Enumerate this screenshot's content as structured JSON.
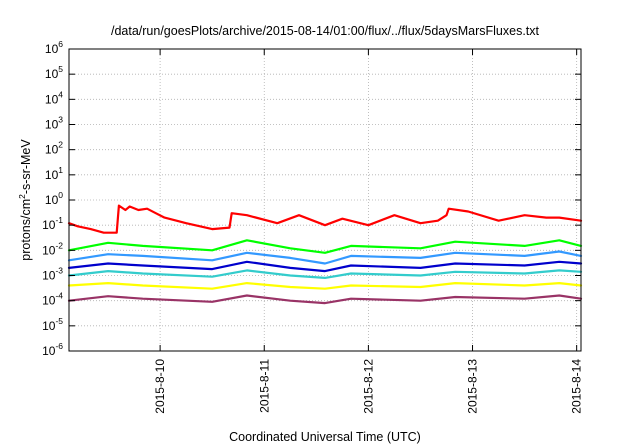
{
  "chart_data": {
    "type": "line",
    "title": "/data/run/goesPlots/archive/2015-08-14/01:00/flux/../flux/5daysMarsFluxes.txt",
    "xlabel": "Coordinated Universal Time (UTC)",
    "ylabel": {
      "base": "protons/cm",
      "exponent": "2",
      "rest": "-s-sr-MeV"
    },
    "yscale": "log",
    "ylim": [
      1e-06,
      1000000.0
    ],
    "xlim": [
      "2015-08-09T03:00",
      "2015-08-14T01:00"
    ],
    "grid": true,
    "legend": "none",
    "y_tick_labels": [
      {
        "base": "10",
        "exp": "-6"
      },
      {
        "base": "10",
        "exp": "-5"
      },
      {
        "base": "10",
        "exp": "-4"
      },
      {
        "base": "10",
        "exp": "-3"
      },
      {
        "base": "10",
        "exp": "-2"
      },
      {
        "base": "10",
        "exp": "-1"
      },
      {
        "base": "10",
        "exp": "0"
      },
      {
        "base": "10",
        "exp": "1"
      },
      {
        "base": "10",
        "exp": "2"
      },
      {
        "base": "10",
        "exp": "3"
      },
      {
        "base": "10",
        "exp": "4"
      },
      {
        "base": "10",
        "exp": "5"
      },
      {
        "base": "10",
        "exp": "6"
      }
    ],
    "x_ticks": [
      {
        "date": "2015-08-10T00:00",
        "label": "2015-8-10"
      },
      {
        "date": "2015-08-11T00:00",
        "label": "2015-8-11"
      },
      {
        "date": "2015-08-12T00:00",
        "label": "2015-8-12"
      },
      {
        "date": "2015-08-13T00:00",
        "label": "2015-8-13"
      },
      {
        "date": "2015-08-14T00:00",
        "label": "2015-8-14"
      }
    ],
    "series": [
      {
        "color": "#ff0000",
        "x": [
          "2015-08-09T03:00",
          "2015-08-09T05:00",
          "2015-08-09T08:00",
          "2015-08-09T11:00",
          "2015-08-09T14:00",
          "2015-08-09T14:30",
          "2015-08-09T16:00",
          "2015-08-09T17:00",
          "2015-08-09T19:00",
          "2015-08-09T21:00",
          "2015-08-09T23:00",
          "2015-08-10T01:00",
          "2015-08-10T06:00",
          "2015-08-10T12:00",
          "2015-08-10T16:00",
          "2015-08-10T16:30",
          "2015-08-10T20:00",
          "2015-08-11T03:00",
          "2015-08-11T08:00",
          "2015-08-11T14:00",
          "2015-08-11T18:00",
          "2015-08-12T00:00",
          "2015-08-12T06:00",
          "2015-08-12T12:00",
          "2015-08-12T16:00",
          "2015-08-12T18:00",
          "2015-08-12T18:30",
          "2015-08-12T23:00",
          "2015-08-13T06:00",
          "2015-08-13T12:00",
          "2015-08-13T17:00",
          "2015-08-13T20:00",
          "2015-08-14T01:00"
        ],
        "y": [
          0.12,
          0.09,
          0.07,
          0.05,
          0.05,
          0.6,
          0.4,
          0.55,
          0.4,
          0.45,
          0.3,
          0.2,
          0.12,
          0.07,
          0.08,
          0.3,
          0.25,
          0.12,
          0.25,
          0.1,
          0.18,
          0.1,
          0.25,
          0.12,
          0.15,
          0.25,
          0.45,
          0.35,
          0.15,
          0.25,
          0.2,
          0.2,
          0.15
        ]
      },
      {
        "color": "#00ff00",
        "x": [
          "2015-08-09T03:00",
          "2015-08-09T12:00",
          "2015-08-09T20:00",
          "2015-08-10T12:00",
          "2015-08-10T20:00",
          "2015-08-11T06:00",
          "2015-08-11T14:00",
          "2015-08-11T20:00",
          "2015-08-12T12:00",
          "2015-08-12T20:00",
          "2015-08-13T12:00",
          "2015-08-13T20:00",
          "2015-08-14T01:00"
        ],
        "y": [
          0.01,
          0.02,
          0.015,
          0.01,
          0.025,
          0.012,
          0.008,
          0.015,
          0.012,
          0.022,
          0.015,
          0.025,
          0.015
        ]
      },
      {
        "color": "#3399ff",
        "x": [
          "2015-08-09T03:00",
          "2015-08-09T12:00",
          "2015-08-09T20:00",
          "2015-08-10T12:00",
          "2015-08-10T20:00",
          "2015-08-11T06:00",
          "2015-08-11T14:00",
          "2015-08-11T20:00",
          "2015-08-12T12:00",
          "2015-08-12T20:00",
          "2015-08-13T12:00",
          "2015-08-13T20:00",
          "2015-08-14T01:00"
        ],
        "y": [
          0.004,
          0.007,
          0.006,
          0.004,
          0.008,
          0.005,
          0.003,
          0.006,
          0.005,
          0.008,
          0.006,
          0.009,
          0.006
        ]
      },
      {
        "color": "#0000cc",
        "x": [
          "2015-08-09T03:00",
          "2015-08-09T12:00",
          "2015-08-09T20:00",
          "2015-08-10T12:00",
          "2015-08-10T20:00",
          "2015-08-11T06:00",
          "2015-08-11T14:00",
          "2015-08-11T20:00",
          "2015-08-12T12:00",
          "2015-08-12T20:00",
          "2015-08-13T12:00",
          "2015-08-13T20:00",
          "2015-08-14T01:00"
        ],
        "y": [
          0.002,
          0.003,
          0.0025,
          0.0018,
          0.0035,
          0.002,
          0.0015,
          0.0025,
          0.002,
          0.003,
          0.0025,
          0.0035,
          0.003
        ]
      },
      {
        "color": "#33cccc",
        "x": [
          "2015-08-09T03:00",
          "2015-08-09T12:00",
          "2015-08-09T20:00",
          "2015-08-10T12:00",
          "2015-08-10T20:00",
          "2015-08-11T06:00",
          "2015-08-11T14:00",
          "2015-08-11T20:00",
          "2015-08-12T12:00",
          "2015-08-12T20:00",
          "2015-08-13T12:00",
          "2015-08-13T20:00",
          "2015-08-14T01:00"
        ],
        "y": [
          0.001,
          0.0015,
          0.0012,
          0.0009,
          0.0016,
          0.001,
          0.0008,
          0.0012,
          0.001,
          0.0014,
          0.0012,
          0.0016,
          0.0014
        ]
      },
      {
        "color": "#ffff00",
        "x": [
          "2015-08-09T03:00",
          "2015-08-09T12:00",
          "2015-08-09T20:00",
          "2015-08-10T12:00",
          "2015-08-10T20:00",
          "2015-08-11T06:00",
          "2015-08-11T14:00",
          "2015-08-11T20:00",
          "2015-08-12T12:00",
          "2015-08-12T20:00",
          "2015-08-13T12:00",
          "2015-08-13T20:00",
          "2015-08-14T01:00"
        ],
        "y": [
          0.0004,
          0.0005,
          0.0004,
          0.0003,
          0.0005,
          0.00035,
          0.0003,
          0.0004,
          0.00035,
          0.0005,
          0.0004,
          0.0005,
          0.0004
        ]
      },
      {
        "color": "#993366",
        "x": [
          "2015-08-09T03:00",
          "2015-08-09T12:00",
          "2015-08-09T20:00",
          "2015-08-10T12:00",
          "2015-08-10T20:00",
          "2015-08-11T06:00",
          "2015-08-11T14:00",
          "2015-08-11T20:00",
          "2015-08-12T12:00",
          "2015-08-12T20:00",
          "2015-08-13T12:00",
          "2015-08-13T20:00",
          "2015-08-14T01:00"
        ],
        "y": [
          0.0001,
          0.00015,
          0.00012,
          9e-05,
          0.00016,
          0.0001,
          8e-05,
          0.00012,
          0.0001,
          0.00014,
          0.00012,
          0.00016,
          0.00012
        ]
      }
    ]
  }
}
